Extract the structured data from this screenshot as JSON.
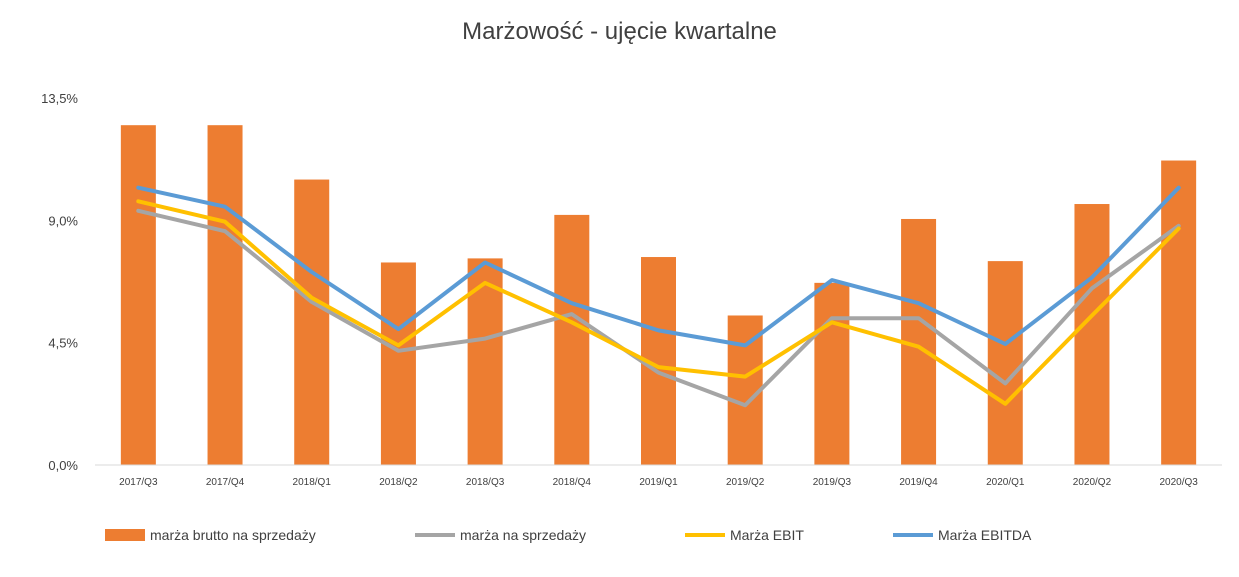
{
  "chart_data": {
    "type": "bar+line",
    "title": "Marżowość - ujęcie kwartalne",
    "categories": [
      "2017/Q3",
      "2017/Q4",
      "2018/Q1",
      "2018/Q2",
      "2018/Q3",
      "2018/Q4",
      "2019/Q1",
      "2019/Q2",
      "2019/Q3",
      "2019/Q4",
      "2020/Q1",
      "2020/Q2",
      "2020/Q3"
    ],
    "ylim": [
      0,
      13.5
    ],
    "yticks": [
      "0,0%",
      "4,5%",
      "9,0%",
      "13,5%"
    ],
    "ytick_values": [
      0,
      4.5,
      9.0,
      13.5
    ],
    "grid": false,
    "legend_position": "bottom",
    "series": [
      {
        "name": "marża brutto na sprzedaży",
        "kind": "bar",
        "color": "#ED7D31",
        "values": [
          12.5,
          12.5,
          10.5,
          7.45,
          7.6,
          9.2,
          7.65,
          5.5,
          6.7,
          9.05,
          7.5,
          9.6,
          11.2
        ]
      },
      {
        "name": "marża na sprzedaży",
        "kind": "line",
        "color": "#A5A5A5",
        "values": [
          9.35,
          8.6,
          6.0,
          4.2,
          4.65,
          5.55,
          3.4,
          2.2,
          5.4,
          5.4,
          3.0,
          6.5,
          8.8
        ]
      },
      {
        "name": "Marża EBIT",
        "kind": "line",
        "color": "#FFC000",
        "values": [
          9.7,
          8.95,
          6.15,
          4.4,
          6.7,
          5.25,
          3.6,
          3.25,
          5.25,
          4.35,
          2.25,
          5.5,
          8.7
        ]
      },
      {
        "name": "Marża EBITDA",
        "kind": "line",
        "color": "#5B9BD5",
        "values": [
          10.2,
          9.5,
          7.1,
          5.0,
          7.45,
          5.95,
          4.95,
          4.4,
          6.8,
          5.95,
          4.45,
          6.9,
          10.2
        ]
      }
    ]
  }
}
